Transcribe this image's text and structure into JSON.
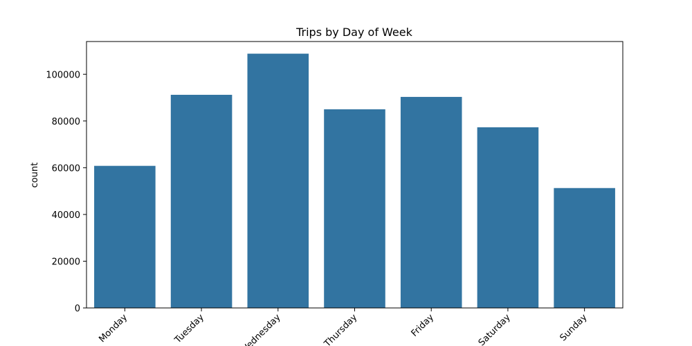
{
  "chart_data": {
    "type": "bar",
    "title": "Trips by Day of Week",
    "xlabel": "",
    "ylabel": "count",
    "categories": [
      "Monday",
      "Tuesday",
      "Wednesday",
      "Thursday",
      "Friday",
      "Saturday",
      "Sunday"
    ],
    "values": [
      60800,
      91200,
      108800,
      85000,
      90300,
      77300,
      51300
    ],
    "ylim": [
      0,
      114000
    ],
    "yticks": [
      0,
      20000,
      40000,
      60000,
      80000,
      100000
    ],
    "bar_color": "#3274a1",
    "grid": false,
    "legend": "none",
    "xtick_rotation": "45deg"
  }
}
